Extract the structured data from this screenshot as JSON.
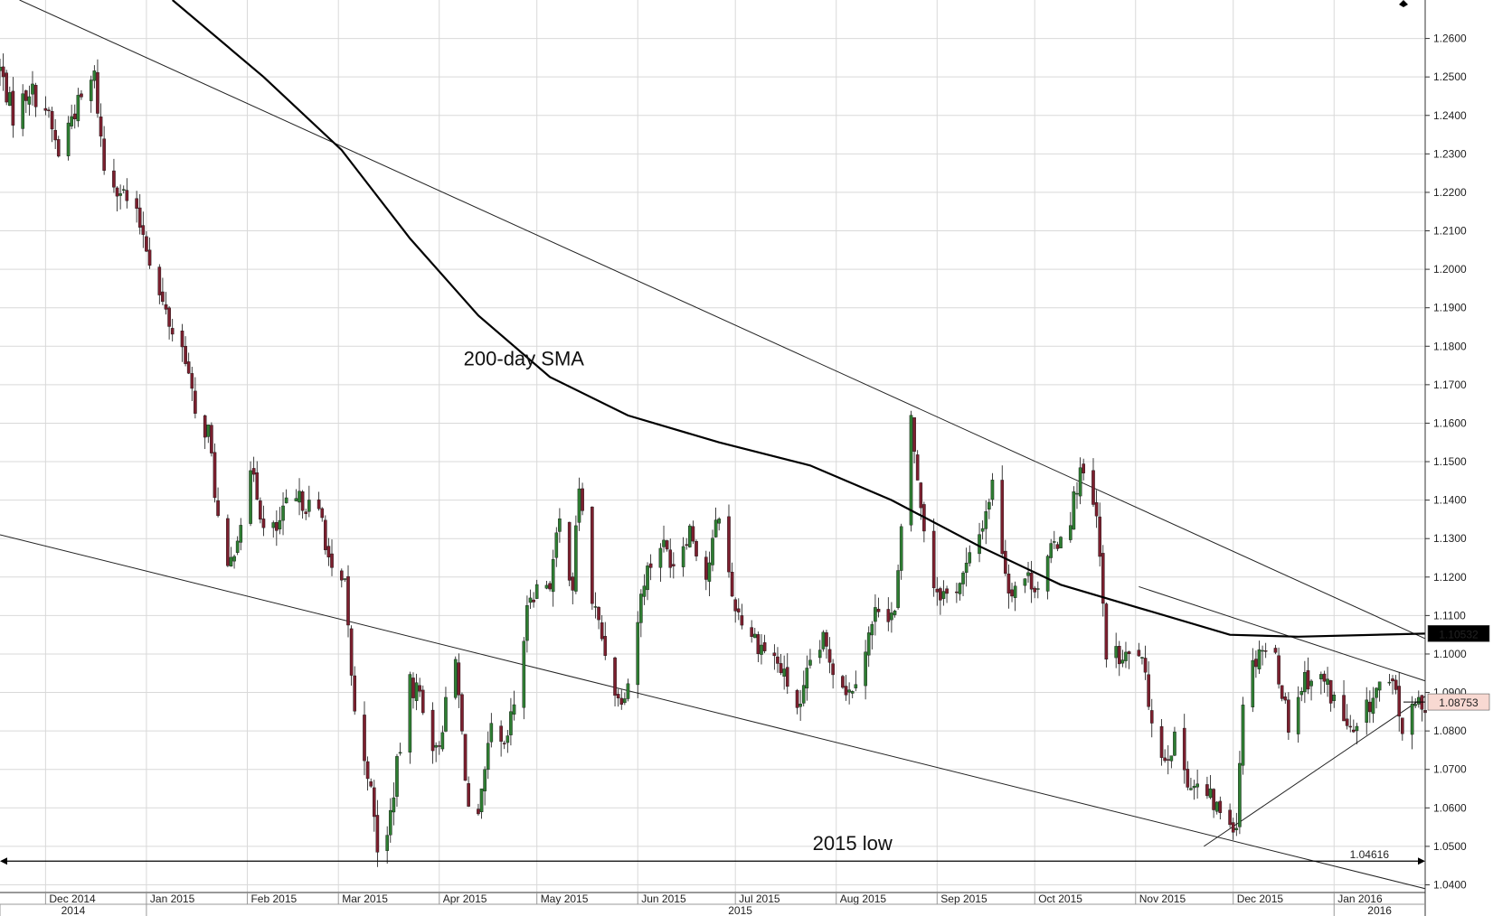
{
  "chart_data": {
    "type": "candlestick",
    "grid": true,
    "y_axis_side": "right",
    "ylim": [
      1.038,
      1.27
    ],
    "xlim": [
      "2014-11-17",
      "2016-01-29"
    ],
    "yticks": [
      "1.2600",
      "1.2500",
      "1.2400",
      "1.2300",
      "1.2200",
      "1.2100",
      "1.2000",
      "1.1900",
      "1.1800",
      "1.1700",
      "1.1600",
      "1.1500",
      "1.1400",
      "1.1300",
      "1.1200",
      "1.1100",
      "1.1000",
      "1.0900",
      "1.0800",
      "1.0700",
      "1.0600",
      "1.0500",
      "1.0400"
    ],
    "months": [
      {
        "label": "Dec 2014",
        "date": "2014-12-01"
      },
      {
        "label": "Jan 2015",
        "date": "2015-01-01"
      },
      {
        "label": "Feb 2015",
        "date": "2015-02-01"
      },
      {
        "label": "Mar 2015",
        "date": "2015-03-01"
      },
      {
        "label": "Apr 2015",
        "date": "2015-04-01"
      },
      {
        "label": "May 2015",
        "date": "2015-05-01"
      },
      {
        "label": "Jun 2015",
        "date": "2015-06-01"
      },
      {
        "label": "Jul 2015",
        "date": "2015-07-01"
      },
      {
        "label": "Aug 2015",
        "date": "2015-08-01"
      },
      {
        "label": "Sep 2015",
        "date": "2015-09-01"
      },
      {
        "label": "Oct 2015",
        "date": "2015-10-01"
      },
      {
        "label": "Nov 2015",
        "date": "2015-11-01"
      },
      {
        "label": "Dec 2015",
        "date": "2015-12-01"
      },
      {
        "label": "Jan 2016",
        "date": "2016-01-01"
      }
    ],
    "years": [
      {
        "label": "2014",
        "start": "2014-11-17",
        "end": "2015-01-01"
      },
      {
        "label": "2015",
        "start": "2015-01-01",
        "end": "2016-01-01"
      },
      {
        "label": "2016",
        "start": "2016-01-01",
        "end": "2016-01-29"
      }
    ],
    "price_path": [
      {
        "date": "2014-11-17",
        "value": 1.252
      },
      {
        "date": "2014-11-21",
        "value": 1.24
      },
      {
        "date": "2014-11-26",
        "value": 1.247
      },
      {
        "date": "2014-12-01",
        "value": 1.242
      },
      {
        "date": "2014-12-05",
        "value": 1.23
      },
      {
        "date": "2014-12-09",
        "value": 1.24
      },
      {
        "date": "2014-12-12",
        "value": 1.244
      },
      {
        "date": "2014-12-16",
        "value": 1.25
      },
      {
        "date": "2014-12-19",
        "value": 1.226
      },
      {
        "date": "2014-12-24",
        "value": 1.221
      },
      {
        "date": "2014-12-31",
        "value": 1.21
      },
      {
        "date": "2015-01-05",
        "value": 1.193
      },
      {
        "date": "2015-01-09",
        "value": 1.184
      },
      {
        "date": "2015-01-13",
        "value": 1.178
      },
      {
        "date": "2015-01-16",
        "value": 1.161
      },
      {
        "date": "2015-01-20",
        "value": 1.158
      },
      {
        "date": "2015-01-23",
        "value": 1.135
      },
      {
        "date": "2015-01-26",
        "value": 1.12
      },
      {
        "date": "2015-01-29",
        "value": 1.132
      },
      {
        "date": "2015-02-03",
        "value": 1.148
      },
      {
        "date": "2015-02-06",
        "value": 1.132
      },
      {
        "date": "2015-02-10",
        "value": 1.132
      },
      {
        "date": "2015-02-13",
        "value": 1.138
      },
      {
        "date": "2015-02-18",
        "value": 1.14
      },
      {
        "date": "2015-02-24",
        "value": 1.135
      },
      {
        "date": "2015-02-27",
        "value": 1.12
      },
      {
        "date": "2015-03-03",
        "value": 1.117
      },
      {
        "date": "2015-03-06",
        "value": 1.084
      },
      {
        "date": "2015-03-10",
        "value": 1.07
      },
      {
        "date": "2015-03-13",
        "value": 1.05
      },
      {
        "date": "2015-03-16",
        "value": 1.052
      },
      {
        "date": "2015-03-18",
        "value": 1.065
      },
      {
        "date": "2015-03-23",
        "value": 1.092
      },
      {
        "date": "2015-03-26",
        "value": 1.09
      },
      {
        "date": "2015-03-31",
        "value": 1.074
      },
      {
        "date": "2015-04-06",
        "value": 1.098
      },
      {
        "date": "2015-04-10",
        "value": 1.06
      },
      {
        "date": "2015-04-13",
        "value": 1.056
      },
      {
        "date": "2015-04-17",
        "value": 1.08
      },
      {
        "date": "2015-04-21",
        "value": 1.074
      },
      {
        "date": "2015-04-24",
        "value": 1.087
      },
      {
        "date": "2015-04-29",
        "value": 1.116
      },
      {
        "date": "2015-05-05",
        "value": 1.119
      },
      {
        "date": "2015-05-08",
        "value": 1.134
      },
      {
        "date": "2015-05-12",
        "value": 1.118
      },
      {
        "date": "2015-05-14",
        "value": 1.144
      },
      {
        "date": "2015-05-18",
        "value": 1.114
      },
      {
        "date": "2015-05-22",
        "value": 1.101
      },
      {
        "date": "2015-05-26",
        "value": 1.088
      },
      {
        "date": "2015-05-29",
        "value": 1.093
      },
      {
        "date": "2015-06-03",
        "value": 1.12
      },
      {
        "date": "2015-06-08",
        "value": 1.129
      },
      {
        "date": "2015-06-12",
        "value": 1.124
      },
      {
        "date": "2015-06-17",
        "value": 1.133
      },
      {
        "date": "2015-06-22",
        "value": 1.12
      },
      {
        "date": "2015-06-26",
        "value": 1.137
      },
      {
        "date": "2015-06-30",
        "value": 1.115
      },
      {
        "date": "2015-07-03",
        "value": 1.109
      },
      {
        "date": "2015-07-08",
        "value": 1.103
      },
      {
        "date": "2015-07-13",
        "value": 1.099
      },
      {
        "date": "2015-07-16",
        "value": 1.094
      },
      {
        "date": "2015-07-21",
        "value": 1.085
      },
      {
        "date": "2015-07-24",
        "value": 1.098
      },
      {
        "date": "2015-07-28",
        "value": 1.103
      },
      {
        "date": "2015-07-31",
        "value": 1.097
      },
      {
        "date": "2015-08-05",
        "value": 1.09
      },
      {
        "date": "2015-08-10",
        "value": 1.102
      },
      {
        "date": "2015-08-14",
        "value": 1.113
      },
      {
        "date": "2015-08-19",
        "value": 1.11
      },
      {
        "date": "2015-08-24",
        "value": 1.162
      },
      {
        "date": "2015-08-26",
        "value": 1.144
      },
      {
        "date": "2015-08-31",
        "value": 1.118
      },
      {
        "date": "2015-09-04",
        "value": 1.115
      },
      {
        "date": "2015-09-09",
        "value": 1.12
      },
      {
        "date": "2015-09-14",
        "value": 1.131
      },
      {
        "date": "2015-09-18",
        "value": 1.144
      },
      {
        "date": "2015-09-23",
        "value": 1.117
      },
      {
        "date": "2015-09-28",
        "value": 1.12
      },
      {
        "date": "2015-10-02",
        "value": 1.118
      },
      {
        "date": "2015-10-07",
        "value": 1.128
      },
      {
        "date": "2015-10-12",
        "value": 1.136
      },
      {
        "date": "2015-10-15",
        "value": 1.148
      },
      {
        "date": "2015-10-20",
        "value": 1.135
      },
      {
        "date": "2015-10-23",
        "value": 1.101
      },
      {
        "date": "2015-10-28",
        "value": 1.098
      },
      {
        "date": "2015-11-02",
        "value": 1.101
      },
      {
        "date": "2015-11-05",
        "value": 1.088
      },
      {
        "date": "2015-11-09",
        "value": 1.073
      },
      {
        "date": "2015-11-13",
        "value": 1.077
      },
      {
        "date": "2015-11-18",
        "value": 1.066
      },
      {
        "date": "2015-11-23",
        "value": 1.063
      },
      {
        "date": "2015-11-27",
        "value": 1.059
      },
      {
        "date": "2015-12-02",
        "value": 1.056
      },
      {
        "date": "2015-12-04",
        "value": 1.089
      },
      {
        "date": "2015-12-09",
        "value": 1.102
      },
      {
        "date": "2015-12-14",
        "value": 1.099
      },
      {
        "date": "2015-12-18",
        "value": 1.082
      },
      {
        "date": "2015-12-23",
        "value": 1.094
      },
      {
        "date": "2015-12-29",
        "value": 1.093
      },
      {
        "date": "2016-01-04",
        "value": 1.083
      },
      {
        "date": "2016-01-07",
        "value": 1.078
      },
      {
        "date": "2016-01-12",
        "value": 1.087
      },
      {
        "date": "2016-01-15",
        "value": 1.092
      },
      {
        "date": "2016-01-20",
        "value": 1.09
      },
      {
        "date": "2016-01-22",
        "value": 1.08
      },
      {
        "date": "2016-01-27",
        "value": 1.0875
      }
    ],
    "sma200": [
      {
        "date": "2015-01-09",
        "value": 1.27
      },
      {
        "date": "2015-02-06",
        "value": 1.25
      },
      {
        "date": "2015-03-02",
        "value": 1.231
      },
      {
        "date": "2015-03-23",
        "value": 1.208
      },
      {
        "date": "2015-04-13",
        "value": 1.188
      },
      {
        "date": "2015-05-05",
        "value": 1.172
      },
      {
        "date": "2015-05-29",
        "value": 1.162
      },
      {
        "date": "2015-06-26",
        "value": 1.155
      },
      {
        "date": "2015-07-24",
        "value": 1.149
      },
      {
        "date": "2015-08-18",
        "value": 1.14
      },
      {
        "date": "2015-09-14",
        "value": 1.128
      },
      {
        "date": "2015-10-09",
        "value": 1.118
      },
      {
        "date": "2015-11-02",
        "value": 1.112
      },
      {
        "date": "2015-11-30",
        "value": 1.105
      },
      {
        "date": "2015-12-21",
        "value": 1.1045
      },
      {
        "date": "2016-01-29",
        "value": 1.1053
      }
    ],
    "trendlines": [
      {
        "name": "upper-resistance",
        "from": {
          "date": "2014-11-23",
          "value": 1.27
        },
        "to": {
          "date": "2016-01-29",
          "value": 1.104
        }
      },
      {
        "name": "lower-support",
        "from": {
          "date": "2014-11-17",
          "value": 1.131
        },
        "to": {
          "date": "2016-01-29",
          "value": 1.039
        }
      },
      {
        "name": "secondary-resistance",
        "from": {
          "date": "2015-11-02",
          "value": 1.1175
        },
        "to": {
          "date": "2016-01-29",
          "value": 1.093
        }
      },
      {
        "name": "rising-support",
        "from": {
          "date": "2015-11-22",
          "value": 1.05
        },
        "to": {
          "date": "2016-01-29",
          "value": 1.089
        }
      }
    ],
    "hline": {
      "value": 1.04616,
      "label": "1.04616"
    },
    "badges": [
      {
        "value": 1.10532,
        "label": "1.10532",
        "bg": "#000000",
        "fg": "#ffffff"
      },
      {
        "value": 1.08753,
        "label": "1.08753",
        "bg": "#f8d9d2",
        "fg": "#000000"
      }
    ],
    "annotations": [
      {
        "text": "200-day SMA",
        "date": "2015-04-27",
        "value": 1.175
      },
      {
        "text": "2015 low",
        "date": "2015-08-06",
        "value": 1.049
      }
    ],
    "colors": {
      "up": "#2e7d32",
      "down": "#7b1f2e",
      "line": "#000000",
      "grid": "#d9d9d9"
    }
  }
}
